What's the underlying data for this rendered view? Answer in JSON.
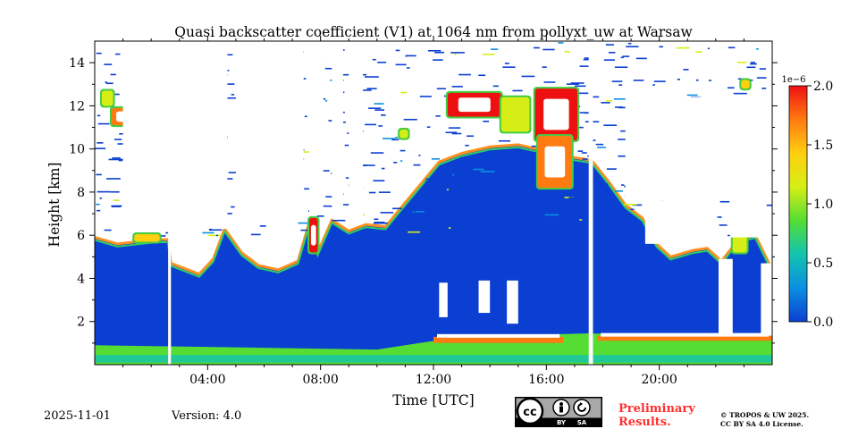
{
  "chart_data": {
    "type": "heatmap",
    "title": "Quasi backscatter coefficient (V1) at 1064 nm from pollyxt_uw at Warsaw",
    "xlabel": "Time [UTC]",
    "ylabel": "Height [km]",
    "xlim": [
      0,
      24
    ],
    "ylim": [
      0,
      15
    ],
    "x_ticks": [
      {
        "value": 4,
        "label": "04:00"
      },
      {
        "value": 8,
        "label": "08:00"
      },
      {
        "value": 12,
        "label": "12:00"
      },
      {
        "value": 16,
        "label": "16:00"
      },
      {
        "value": 20,
        "label": "20:00"
      }
    ],
    "y_ticks": [
      {
        "value": 2,
        "label": "2"
      },
      {
        "value": 4,
        "label": "4"
      },
      {
        "value": 6,
        "label": "6"
      },
      {
        "value": 8,
        "label": "8"
      },
      {
        "value": 10,
        "label": "10"
      },
      {
        "value": 12,
        "label": "12"
      },
      {
        "value": 14,
        "label": "14"
      }
    ],
    "colorbar": {
      "min": 0.0,
      "max": 2.0,
      "scale_label": "1e−6",
      "ticks": [
        {
          "value": 0.0,
          "label": "0.0"
        },
        {
          "value": 0.5,
          "label": "0.5"
        },
        {
          "value": 1.0,
          "label": "1.0"
        },
        {
          "value": 1.5,
          "label": "1.5"
        },
        {
          "value": 2.0,
          "label": "2.0"
        }
      ],
      "colormap": [
        "#0b3fd2",
        "#0b8fe0",
        "#13c4b0",
        "#55dd33",
        "#d6ee15",
        "#ffcf10",
        "#ff7a10",
        "#ee1010"
      ]
    },
    "background_value": 0.0,
    "data_gaps_hours": [
      [
        2.6,
        2.7
      ],
      [
        17.5,
        17.65
      ]
    ],
    "signal_top_km": [
      [
        0,
        5.9
      ],
      [
        0.8,
        5.6
      ],
      [
        1.5,
        5.7
      ],
      [
        2.2,
        5.8
      ],
      [
        2.6,
        5.8
      ],
      [
        2.7,
        4.7
      ],
      [
        3.3,
        4.4
      ],
      [
        3.7,
        4.2
      ],
      [
        4.2,
        4.9
      ],
      [
        4.6,
        6.3
      ],
      [
        5.2,
        5.2
      ],
      [
        5.8,
        4.6
      ],
      [
        6.5,
        4.4
      ],
      [
        7.2,
        4.8
      ],
      [
        7.6,
        6.6
      ],
      [
        7.9,
        5.2
      ],
      [
        8.4,
        6.7
      ],
      [
        9.0,
        6.2
      ],
      [
        9.6,
        6.5
      ],
      [
        10.3,
        6.4
      ],
      [
        10.8,
        7.2
      ],
      [
        11.5,
        8.3
      ],
      [
        12.2,
        9.4
      ],
      [
        13.0,
        9.8
      ],
      [
        14.0,
        10.1
      ],
      [
        15.0,
        10.2
      ],
      [
        16.0,
        9.9
      ],
      [
        17.0,
        9.6
      ],
      [
        17.5,
        9.5
      ],
      [
        17.65,
        9.4
      ],
      [
        18.2,
        8.5
      ],
      [
        18.8,
        7.4
      ],
      [
        19.4,
        6.8
      ],
      [
        19.9,
        5.6
      ],
      [
        20.4,
        5.0
      ],
      [
        21.2,
        5.3
      ],
      [
        21.7,
        5.4
      ],
      [
        22.2,
        4.8
      ],
      [
        22.8,
        5.8
      ],
      [
        23.4,
        6.0
      ],
      [
        24,
        4.4
      ]
    ],
    "boundary_layer": {
      "low_top": [
        [
          0,
          0.9
        ],
        [
          10.0,
          0.7
        ],
        [
          11.0,
          0.9
        ],
        [
          12.0,
          1.1
        ],
        [
          13.0,
          1.2
        ],
        [
          14.0,
          1.3
        ],
        [
          15.0,
          1.35
        ],
        [
          16.0,
          1.4
        ],
        [
          17.5,
          1.45
        ],
        [
          19.0,
          1.4
        ],
        [
          21.0,
          1.35
        ],
        [
          22.5,
          1.3
        ],
        [
          24,
          1.2
        ]
      ],
      "high_value_band": [
        [
          12.0,
          16.6,
          1.05,
          1.25
        ],
        [
          17.8,
          24.0,
          1.15,
          1.3
        ]
      ]
    },
    "cloud_features": [
      {
        "x": 0.25,
        "y": 12.0,
        "w": 0.4,
        "h": 0.7,
        "value": 1.2
      },
      {
        "x": 0.6,
        "y": 11.1,
        "w": 0.8,
        "h": 0.8,
        "value": 1.8
      },
      {
        "x": 1.4,
        "y": 5.7,
        "w": 0.9,
        "h": 0.35,
        "value": 1.4
      },
      {
        "x": 4.4,
        "y": 9.2,
        "w": 0.2,
        "h": 1.5,
        "value": 1.9
      },
      {
        "x": 7.6,
        "y": 5.2,
        "w": 0.3,
        "h": 1.6,
        "value": 1.9
      },
      {
        "x": 12.5,
        "y": 11.5,
        "w": 1.9,
        "h": 1.1,
        "value": 1.9
      },
      {
        "x": 14.4,
        "y": 10.8,
        "w": 1.0,
        "h": 1.6,
        "value": 1.2
      },
      {
        "x": 15.6,
        "y": 10.4,
        "w": 1.5,
        "h": 2.4,
        "value": 1.9
      },
      {
        "x": 15.7,
        "y": 8.2,
        "w": 1.2,
        "h": 2.4,
        "value": 1.8
      },
      {
        "x": 10.8,
        "y": 10.5,
        "w": 0.3,
        "h": 0.4,
        "value": 1.1
      },
      {
        "x": 22.6,
        "y": 5.2,
        "w": 0.5,
        "h": 1.4,
        "value": 1.1
      },
      {
        "x": 22.9,
        "y": 12.8,
        "w": 0.3,
        "h": 0.4,
        "value": 1.3
      }
    ],
    "clear_regions": [
      {
        "x": 1.0,
        "y": 6.2,
        "w": 2.2,
        "h": 8.8
      },
      {
        "x": 3.1,
        "y": 6.3,
        "w": 1.6,
        "h": 8.7
      },
      {
        "x": 5.0,
        "y": 6.8,
        "w": 2.4,
        "h": 8.2
      },
      {
        "x": 7.6,
        "y": 7.0,
        "w": 0.5,
        "h": 8.0
      },
      {
        "x": 8.4,
        "y": 7.0,
        "w": 0.4,
        "h": 8.0
      },
      {
        "x": 9.0,
        "y": 6.8,
        "w": 0.5,
        "h": 8.2
      },
      {
        "x": 18.8,
        "y": 7.6,
        "w": 5.2,
        "h": 4.8
      },
      {
        "x": 19.5,
        "y": 5.6,
        "w": 2.3,
        "h": 2.0
      },
      {
        "x": 22.5,
        "y": 5.9,
        "w": 1.3,
        "h": 1.8
      },
      {
        "x": 12.2,
        "y": 2.2,
        "w": 0.3,
        "h": 1.6
      },
      {
        "x": 13.6,
        "y": 2.4,
        "w": 0.4,
        "h": 1.5
      },
      {
        "x": 14.6,
        "y": 1.9,
        "w": 0.4,
        "h": 2.0
      },
      {
        "x": 22.1,
        "y": 1.3,
        "w": 0.5,
        "h": 3.6
      },
      {
        "x": 23.6,
        "y": 1.1,
        "w": 0.4,
        "h": 3.6
      }
    ]
  },
  "footer": {
    "date": "2025-11-01",
    "version": "Version: 4.0",
    "preliminary_line1": "Preliminary",
    "preliminary_line2": "Results.",
    "license_line1": "© TROPOS & UW 2025.",
    "license_line2": "CC BY SA 4.0 License.",
    "cc_label_by": "BY",
    "cc_label_sa": "SA"
  },
  "colors": {
    "preliminary": "#ff3030",
    "cc_gray": "#a8a8a8"
  }
}
